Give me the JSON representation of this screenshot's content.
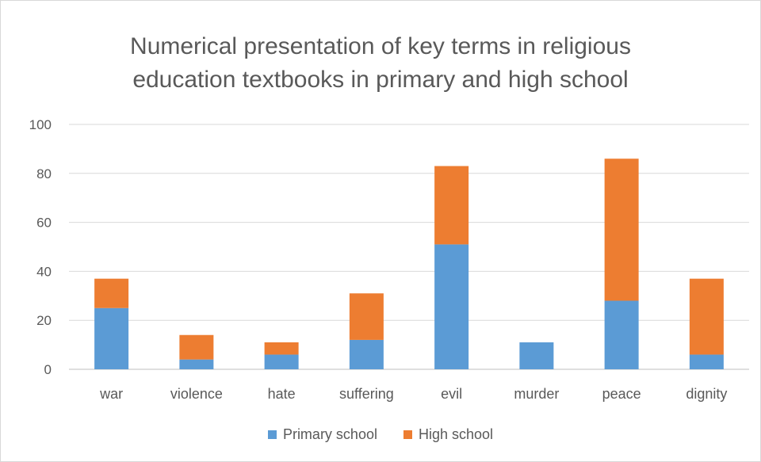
{
  "chart_data": {
    "type": "bar",
    "stacked": true,
    "title_lines": [
      "Numerical presentation of key terms in religious",
      "education textbooks in primary and high school"
    ],
    "categories": [
      "war",
      "violence",
      "hate",
      "suffering",
      "evil",
      "murder",
      "peace",
      "dignity"
    ],
    "series": [
      {
        "name": "Primary school",
        "color": "#5B9BD5",
        "values": [
          25,
          4,
          6,
          12,
          51,
          11,
          28,
          6
        ]
      },
      {
        "name": "High school",
        "color": "#ED7D31",
        "values": [
          12,
          10,
          5,
          19,
          32,
          0,
          58,
          31
        ]
      }
    ],
    "ylim": [
      0,
      100
    ],
    "yticks": [
      0,
      20,
      40,
      60,
      80,
      100
    ],
    "grid": true,
    "legend_position": "bottom"
  }
}
